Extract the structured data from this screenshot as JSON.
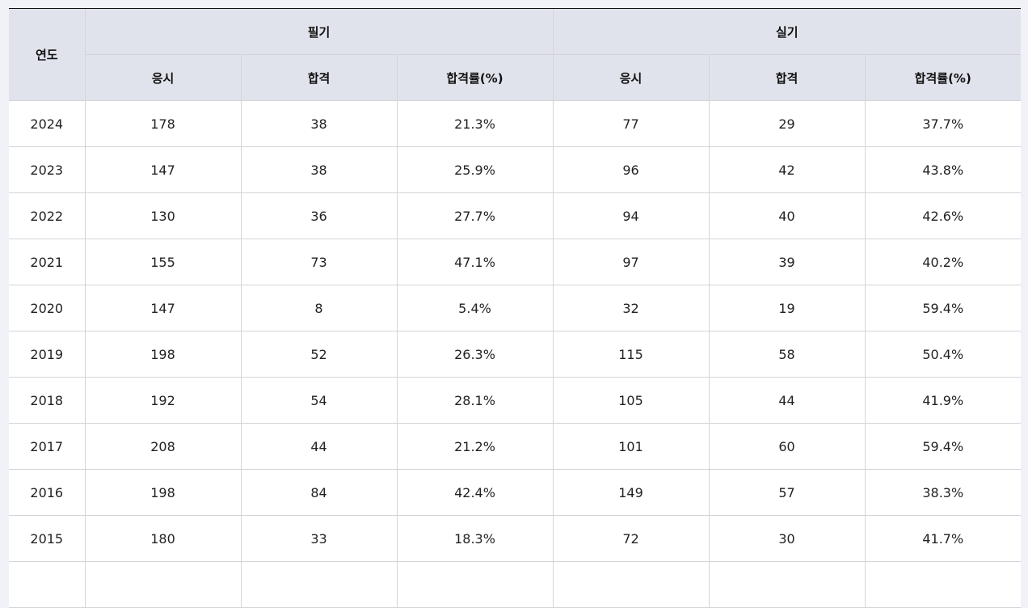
{
  "table": {
    "year_header": "연도",
    "groups": [
      "필기",
      "실기"
    ],
    "sub_headers": [
      "응시",
      "합격",
      "합격률(%)",
      "응시",
      "합격",
      "합격률(%)"
    ],
    "rows": [
      [
        "2024",
        "178",
        "38",
        "21.3%",
        "77",
        "29",
        "37.7%"
      ],
      [
        "2023",
        "147",
        "38",
        "25.9%",
        "96",
        "42",
        "43.8%"
      ],
      [
        "2022",
        "130",
        "36",
        "27.7%",
        "94",
        "40",
        "42.6%"
      ],
      [
        "2021",
        "155",
        "73",
        "47.1%",
        "97",
        "39",
        "40.2%"
      ],
      [
        "2020",
        "147",
        "8",
        "5.4%",
        "32",
        "19",
        "59.4%"
      ],
      [
        "2019",
        "198",
        "52",
        "26.3%",
        "115",
        "58",
        "50.4%"
      ],
      [
        "2018",
        "192",
        "54",
        "28.1%",
        "105",
        "44",
        "41.9%"
      ],
      [
        "2017",
        "208",
        "44",
        "21.2%",
        "101",
        "60",
        "59.4%"
      ],
      [
        "2016",
        "198",
        "84",
        "42.4%",
        "149",
        "57",
        "38.3%"
      ],
      [
        "2015",
        "180",
        "33",
        "18.3%",
        "72",
        "30",
        "41.7%"
      ]
    ]
  }
}
